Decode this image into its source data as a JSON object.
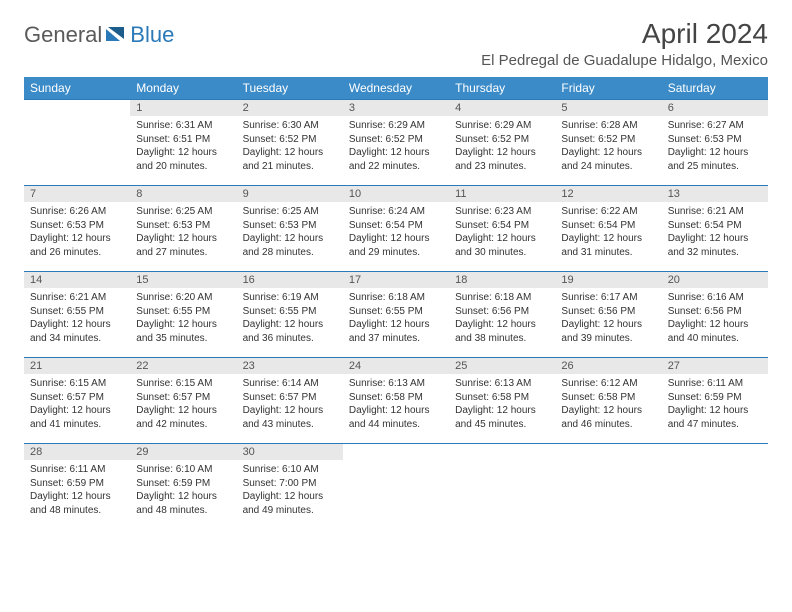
{
  "brand": {
    "part1": "General",
    "part2": "Blue",
    "color_gray": "#5a5a5a",
    "color_blue": "#2a7ab9"
  },
  "title": "April 2024",
  "location": "El Pedregal de Guadalupe Hidalgo, Mexico",
  "day_headers": [
    "Sunday",
    "Monday",
    "Tuesday",
    "Wednesday",
    "Thursday",
    "Friday",
    "Saturday"
  ],
  "colors": {
    "header_bg": "#3b8bc9",
    "header_fg": "#ffffff",
    "daynum_bg": "#e8e8e8",
    "rule": "#2a7ab9",
    "text": "#333333",
    "bg": "#ffffff"
  },
  "fonts": {
    "title_size": 28,
    "location_size": 15,
    "header_size": 12,
    "daynum_size": 11,
    "body_size": 10
  },
  "weeks": [
    [
      {
        "n": "",
        "sunrise": "",
        "sunset": "",
        "daylight": ""
      },
      {
        "n": "1",
        "sunrise": "Sunrise: 6:31 AM",
        "sunset": "Sunset: 6:51 PM",
        "daylight": "Daylight: 12 hours and 20 minutes."
      },
      {
        "n": "2",
        "sunrise": "Sunrise: 6:30 AM",
        "sunset": "Sunset: 6:52 PM",
        "daylight": "Daylight: 12 hours and 21 minutes."
      },
      {
        "n": "3",
        "sunrise": "Sunrise: 6:29 AM",
        "sunset": "Sunset: 6:52 PM",
        "daylight": "Daylight: 12 hours and 22 minutes."
      },
      {
        "n": "4",
        "sunrise": "Sunrise: 6:29 AM",
        "sunset": "Sunset: 6:52 PM",
        "daylight": "Daylight: 12 hours and 23 minutes."
      },
      {
        "n": "5",
        "sunrise": "Sunrise: 6:28 AM",
        "sunset": "Sunset: 6:52 PM",
        "daylight": "Daylight: 12 hours and 24 minutes."
      },
      {
        "n": "6",
        "sunrise": "Sunrise: 6:27 AM",
        "sunset": "Sunset: 6:53 PM",
        "daylight": "Daylight: 12 hours and 25 minutes."
      }
    ],
    [
      {
        "n": "7",
        "sunrise": "Sunrise: 6:26 AM",
        "sunset": "Sunset: 6:53 PM",
        "daylight": "Daylight: 12 hours and 26 minutes."
      },
      {
        "n": "8",
        "sunrise": "Sunrise: 6:25 AM",
        "sunset": "Sunset: 6:53 PM",
        "daylight": "Daylight: 12 hours and 27 minutes."
      },
      {
        "n": "9",
        "sunrise": "Sunrise: 6:25 AM",
        "sunset": "Sunset: 6:53 PM",
        "daylight": "Daylight: 12 hours and 28 minutes."
      },
      {
        "n": "10",
        "sunrise": "Sunrise: 6:24 AM",
        "sunset": "Sunset: 6:54 PM",
        "daylight": "Daylight: 12 hours and 29 minutes."
      },
      {
        "n": "11",
        "sunrise": "Sunrise: 6:23 AM",
        "sunset": "Sunset: 6:54 PM",
        "daylight": "Daylight: 12 hours and 30 minutes."
      },
      {
        "n": "12",
        "sunrise": "Sunrise: 6:22 AM",
        "sunset": "Sunset: 6:54 PM",
        "daylight": "Daylight: 12 hours and 31 minutes."
      },
      {
        "n": "13",
        "sunrise": "Sunrise: 6:21 AM",
        "sunset": "Sunset: 6:54 PM",
        "daylight": "Daylight: 12 hours and 32 minutes."
      }
    ],
    [
      {
        "n": "14",
        "sunrise": "Sunrise: 6:21 AM",
        "sunset": "Sunset: 6:55 PM",
        "daylight": "Daylight: 12 hours and 34 minutes."
      },
      {
        "n": "15",
        "sunrise": "Sunrise: 6:20 AM",
        "sunset": "Sunset: 6:55 PM",
        "daylight": "Daylight: 12 hours and 35 minutes."
      },
      {
        "n": "16",
        "sunrise": "Sunrise: 6:19 AM",
        "sunset": "Sunset: 6:55 PM",
        "daylight": "Daylight: 12 hours and 36 minutes."
      },
      {
        "n": "17",
        "sunrise": "Sunrise: 6:18 AM",
        "sunset": "Sunset: 6:55 PM",
        "daylight": "Daylight: 12 hours and 37 minutes."
      },
      {
        "n": "18",
        "sunrise": "Sunrise: 6:18 AM",
        "sunset": "Sunset: 6:56 PM",
        "daylight": "Daylight: 12 hours and 38 minutes."
      },
      {
        "n": "19",
        "sunrise": "Sunrise: 6:17 AM",
        "sunset": "Sunset: 6:56 PM",
        "daylight": "Daylight: 12 hours and 39 minutes."
      },
      {
        "n": "20",
        "sunrise": "Sunrise: 6:16 AM",
        "sunset": "Sunset: 6:56 PM",
        "daylight": "Daylight: 12 hours and 40 minutes."
      }
    ],
    [
      {
        "n": "21",
        "sunrise": "Sunrise: 6:15 AM",
        "sunset": "Sunset: 6:57 PM",
        "daylight": "Daylight: 12 hours and 41 minutes."
      },
      {
        "n": "22",
        "sunrise": "Sunrise: 6:15 AM",
        "sunset": "Sunset: 6:57 PM",
        "daylight": "Daylight: 12 hours and 42 minutes."
      },
      {
        "n": "23",
        "sunrise": "Sunrise: 6:14 AM",
        "sunset": "Sunset: 6:57 PM",
        "daylight": "Daylight: 12 hours and 43 minutes."
      },
      {
        "n": "24",
        "sunrise": "Sunrise: 6:13 AM",
        "sunset": "Sunset: 6:58 PM",
        "daylight": "Daylight: 12 hours and 44 minutes."
      },
      {
        "n": "25",
        "sunrise": "Sunrise: 6:13 AM",
        "sunset": "Sunset: 6:58 PM",
        "daylight": "Daylight: 12 hours and 45 minutes."
      },
      {
        "n": "26",
        "sunrise": "Sunrise: 6:12 AM",
        "sunset": "Sunset: 6:58 PM",
        "daylight": "Daylight: 12 hours and 46 minutes."
      },
      {
        "n": "27",
        "sunrise": "Sunrise: 6:11 AM",
        "sunset": "Sunset: 6:59 PM",
        "daylight": "Daylight: 12 hours and 47 minutes."
      }
    ],
    [
      {
        "n": "28",
        "sunrise": "Sunrise: 6:11 AM",
        "sunset": "Sunset: 6:59 PM",
        "daylight": "Daylight: 12 hours and 48 minutes."
      },
      {
        "n": "29",
        "sunrise": "Sunrise: 6:10 AM",
        "sunset": "Sunset: 6:59 PM",
        "daylight": "Daylight: 12 hours and 48 minutes."
      },
      {
        "n": "30",
        "sunrise": "Sunrise: 6:10 AM",
        "sunset": "Sunset: 7:00 PM",
        "daylight": "Daylight: 12 hours and 49 minutes."
      },
      {
        "n": "",
        "sunrise": "",
        "sunset": "",
        "daylight": ""
      },
      {
        "n": "",
        "sunrise": "",
        "sunset": "",
        "daylight": ""
      },
      {
        "n": "",
        "sunrise": "",
        "sunset": "",
        "daylight": ""
      },
      {
        "n": "",
        "sunrise": "",
        "sunset": "",
        "daylight": ""
      }
    ]
  ]
}
